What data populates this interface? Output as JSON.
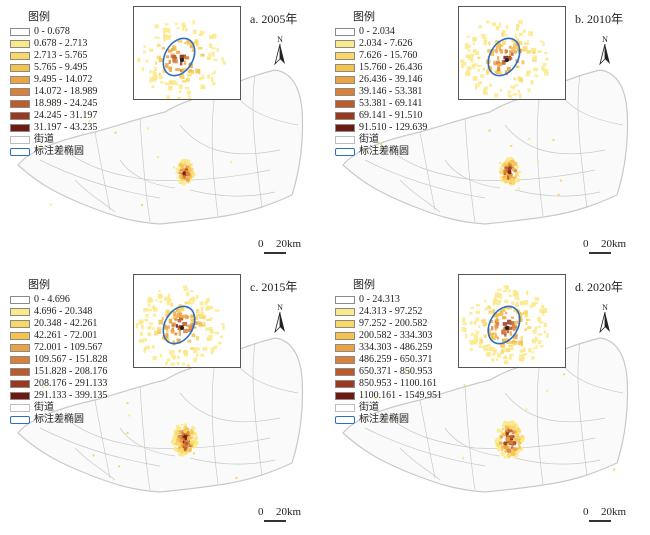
{
  "legend_title": "图例",
  "road_label": "街道",
  "ellipse_label": "标注差椭圆",
  "north_label": "N",
  "scale": {
    "zero": "0",
    "distance": "20km"
  },
  "colors": {
    "classes": [
      "#ffffff",
      "#fce98a",
      "#f9d868",
      "#f5c14f",
      "#eba445",
      "#d9813a",
      "#bd5a2c",
      "#9a3a1f",
      "#6e1a12"
    ],
    "ellipse": "#2a6fc2",
    "boundary": "#c9c9c9"
  },
  "panels": [
    {
      "label": "a. 2005年",
      "classes": [
        "0 - 0.678",
        "0.678 - 2.713",
        "2.713 - 5.765",
        "5.765 - 9.495",
        "9.495 - 14.072",
        "14.072 - 18.989",
        "18.989 - 24.245",
        "24.245 - 31.197",
        "31.197 - 43.235"
      ]
    },
    {
      "label": "b. 2010年",
      "classes": [
        "0 - 2.034",
        "2.034 - 7.626",
        "7.626 - 15.760",
        "15.760 - 26.436",
        "26.436 - 39.146",
        "39.146 - 53.381",
        "53.381 - 69.141",
        "69.141 - 91.510",
        "91.510 - 129.639"
      ]
    },
    {
      "label": "c. 2015年",
      "classes": [
        "0 - 4.696",
        "4.696 - 20.348",
        "20.348 - 42.261",
        "42.261 - 72.001",
        "72.001 - 109.567",
        "109.567 - 151.828",
        "151.828 - 208.176",
        "208.176 - 291.133",
        "291.133 - 399.135"
      ]
    },
    {
      "label": "d. 2020年",
      "classes": [
        "0 - 24.313",
        "24.313 - 97.252",
        "97.252 - 200.582",
        "200.582 - 334.303",
        "334.303 - 486.259",
        "486.259 - 650.371",
        "650.371 - 850.953",
        "850.953 - 1100.161",
        "1100.161 - 1549.951"
      ]
    }
  ]
}
